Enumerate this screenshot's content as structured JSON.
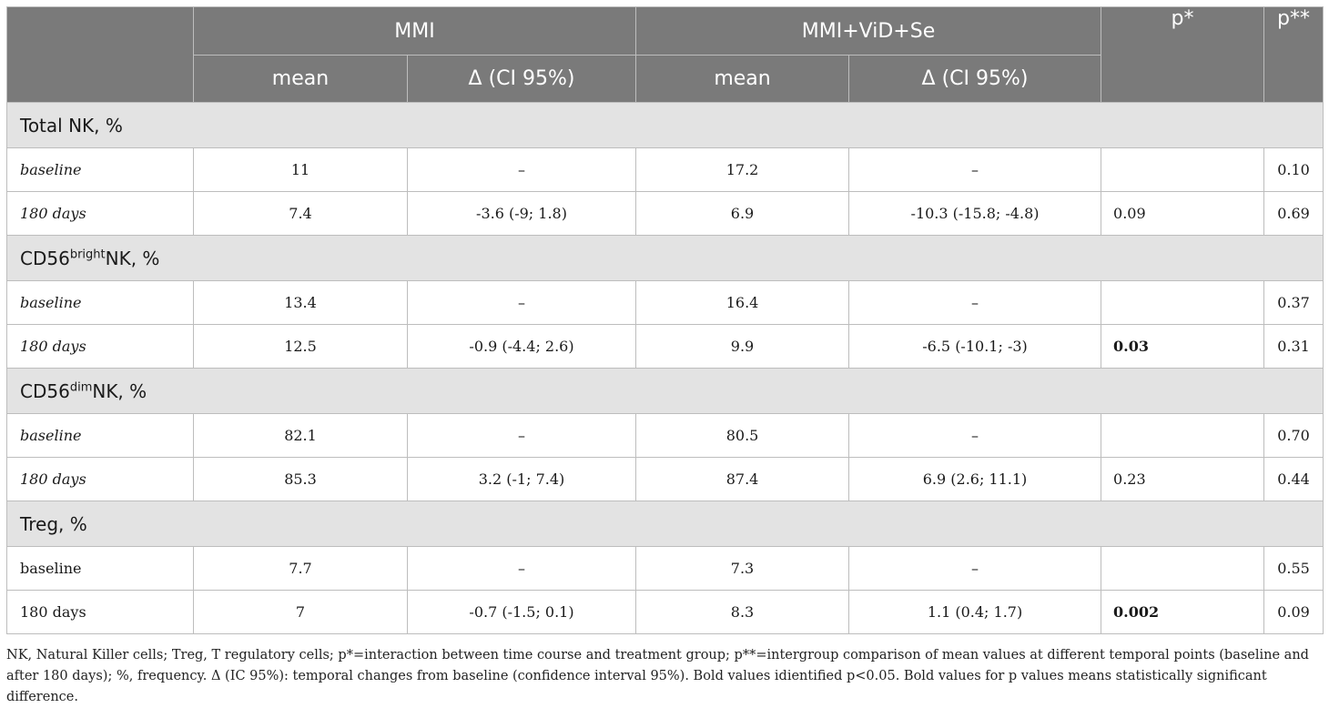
{
  "header": {
    "group1": "MMI",
    "group2": "MMI+ViD+Se",
    "p1": "p*",
    "p2": "p**",
    "mean": "mean",
    "delta": "Δ (CI 95%)"
  },
  "sections": [
    {
      "title_main": "Total NK, %",
      "rows": [
        {
          "label": "baseline",
          "mmi_mean": "11",
          "mmi_delta": "–",
          "vid_mean": "17.2",
          "vid_delta": "–",
          "p1": "",
          "p2": "0.10"
        },
        {
          "label": "180 days",
          "mmi_mean": "7.4",
          "mmi_delta": "-3.6 (-9; 1.8)",
          "vid_mean": "6.9",
          "vid_delta": "-10.3 (-15.8; -4.8)",
          "p1": "0.09",
          "p2": "0.69"
        }
      ]
    },
    {
      "title_pre": "CD56",
      "title_sup": "bright",
      "title_post": "NK, %",
      "rows": [
        {
          "label": "baseline",
          "mmi_mean": "13.4",
          "mmi_delta": "–",
          "vid_mean": "16.4",
          "vid_delta": "–",
          "p1": "",
          "p2": "0.37"
        },
        {
          "label": "180 days",
          "mmi_mean": "12.5",
          "mmi_delta": "-0.9 (-4.4; 2.6)",
          "vid_mean": "9.9",
          "vid_delta": "-6.5 (-10.1; -3)",
          "p1": "0.03",
          "p2": "0.31"
        }
      ]
    },
    {
      "title_pre": "CD56",
      "title_sup": "dim",
      "title_post": "NK, %",
      "rows": [
        {
          "label": "baseline",
          "mmi_mean": "82.1",
          "mmi_delta": "–",
          "vid_mean": "80.5",
          "vid_delta": "–",
          "p1": "",
          "p2": "0.70"
        },
        {
          "label": "180 days",
          "mmi_mean": "85.3",
          "mmi_delta": "3.2 (-1; 7.4)",
          "vid_mean": "87.4",
          "vid_delta": "6.9 (2.6; 11.1)",
          "p1": "0.23",
          "p2": "0.44"
        }
      ]
    },
    {
      "title_main": "Treg, %",
      "rows": [
        {
          "label": "baseline",
          "mmi_mean": "7.7",
          "mmi_delta": "–",
          "vid_mean": "7.3",
          "vid_delta": "–",
          "p1": "",
          "p2": "0.55"
        },
        {
          "label": "180 days",
          "mmi_mean": "7",
          "mmi_delta": "-0.7 (-1.5; 0.1)",
          "vid_mean": "8.3",
          "vid_delta": "1.1 (0.4; 1.7)",
          "p1": "0.002",
          "p2": "0.09"
        }
      ]
    }
  ],
  "footnote": "NK, Natural Killer cells; Treg, T regulatory cells; p*=interaction between time course and treatment group; p**=intergroup comparison of mean values at different temporal points (baseline and after 180 days); %, frequency. Δ (IC 95%): temporal changes from baseline (confidence interval 95%). Bold values idientified p<0.05. Bold values for p values means statistically significant difference."
}
